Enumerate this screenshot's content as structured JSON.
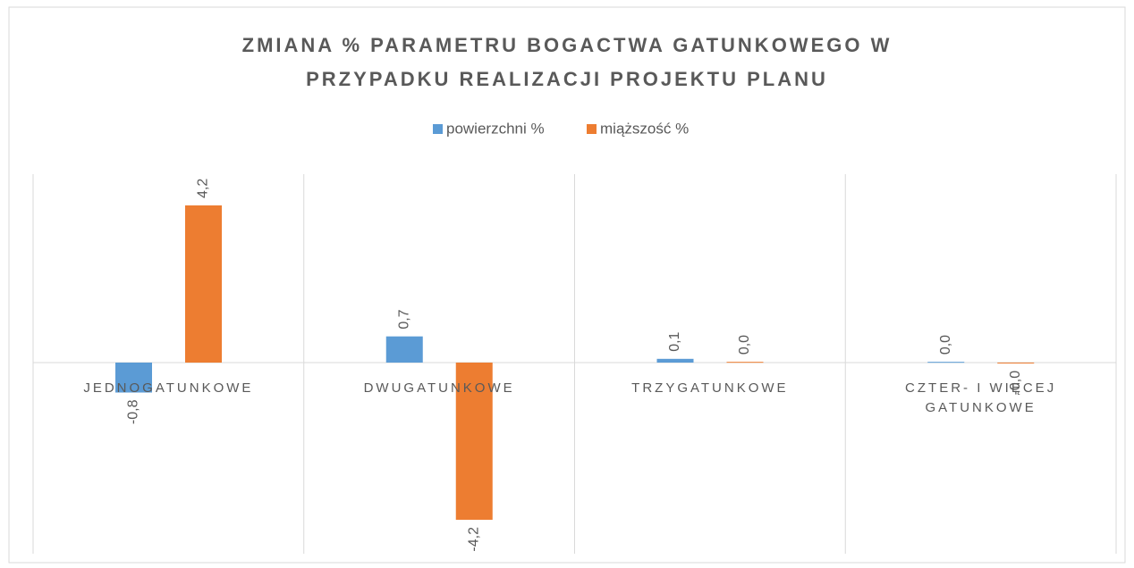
{
  "chart_data": {
    "type": "bar",
    "title": "ZMIANA % PARAMETRU BOGACTWA GATUNKOWEGO W PRZYPADKU REALIZACJI PROJEKTU PLANU",
    "categories": [
      "JEDNOGATUNKOWE",
      "DWUGATUNKOWE",
      "TRZYGATUNKOWE",
      "CZTER- I WIĘCEJ GATUNKOWE"
    ],
    "series": [
      {
        "name": "powierzchni %",
        "color": "#5b9bd5",
        "values": [
          -0.8,
          0.7,
          0.1,
          0.02
        ],
        "value_labels": [
          "-0,8",
          "0,7",
          "0,1",
          "0,0"
        ]
      },
      {
        "name": "miąższość %",
        "color": "#ed7d31",
        "values": [
          4.2,
          -4.2,
          0.02,
          -0.02
        ],
        "value_labels": [
          "4,2",
          "-4,2",
          "0,0",
          "-0,0"
        ]
      }
    ],
    "legend": "top"
  }
}
